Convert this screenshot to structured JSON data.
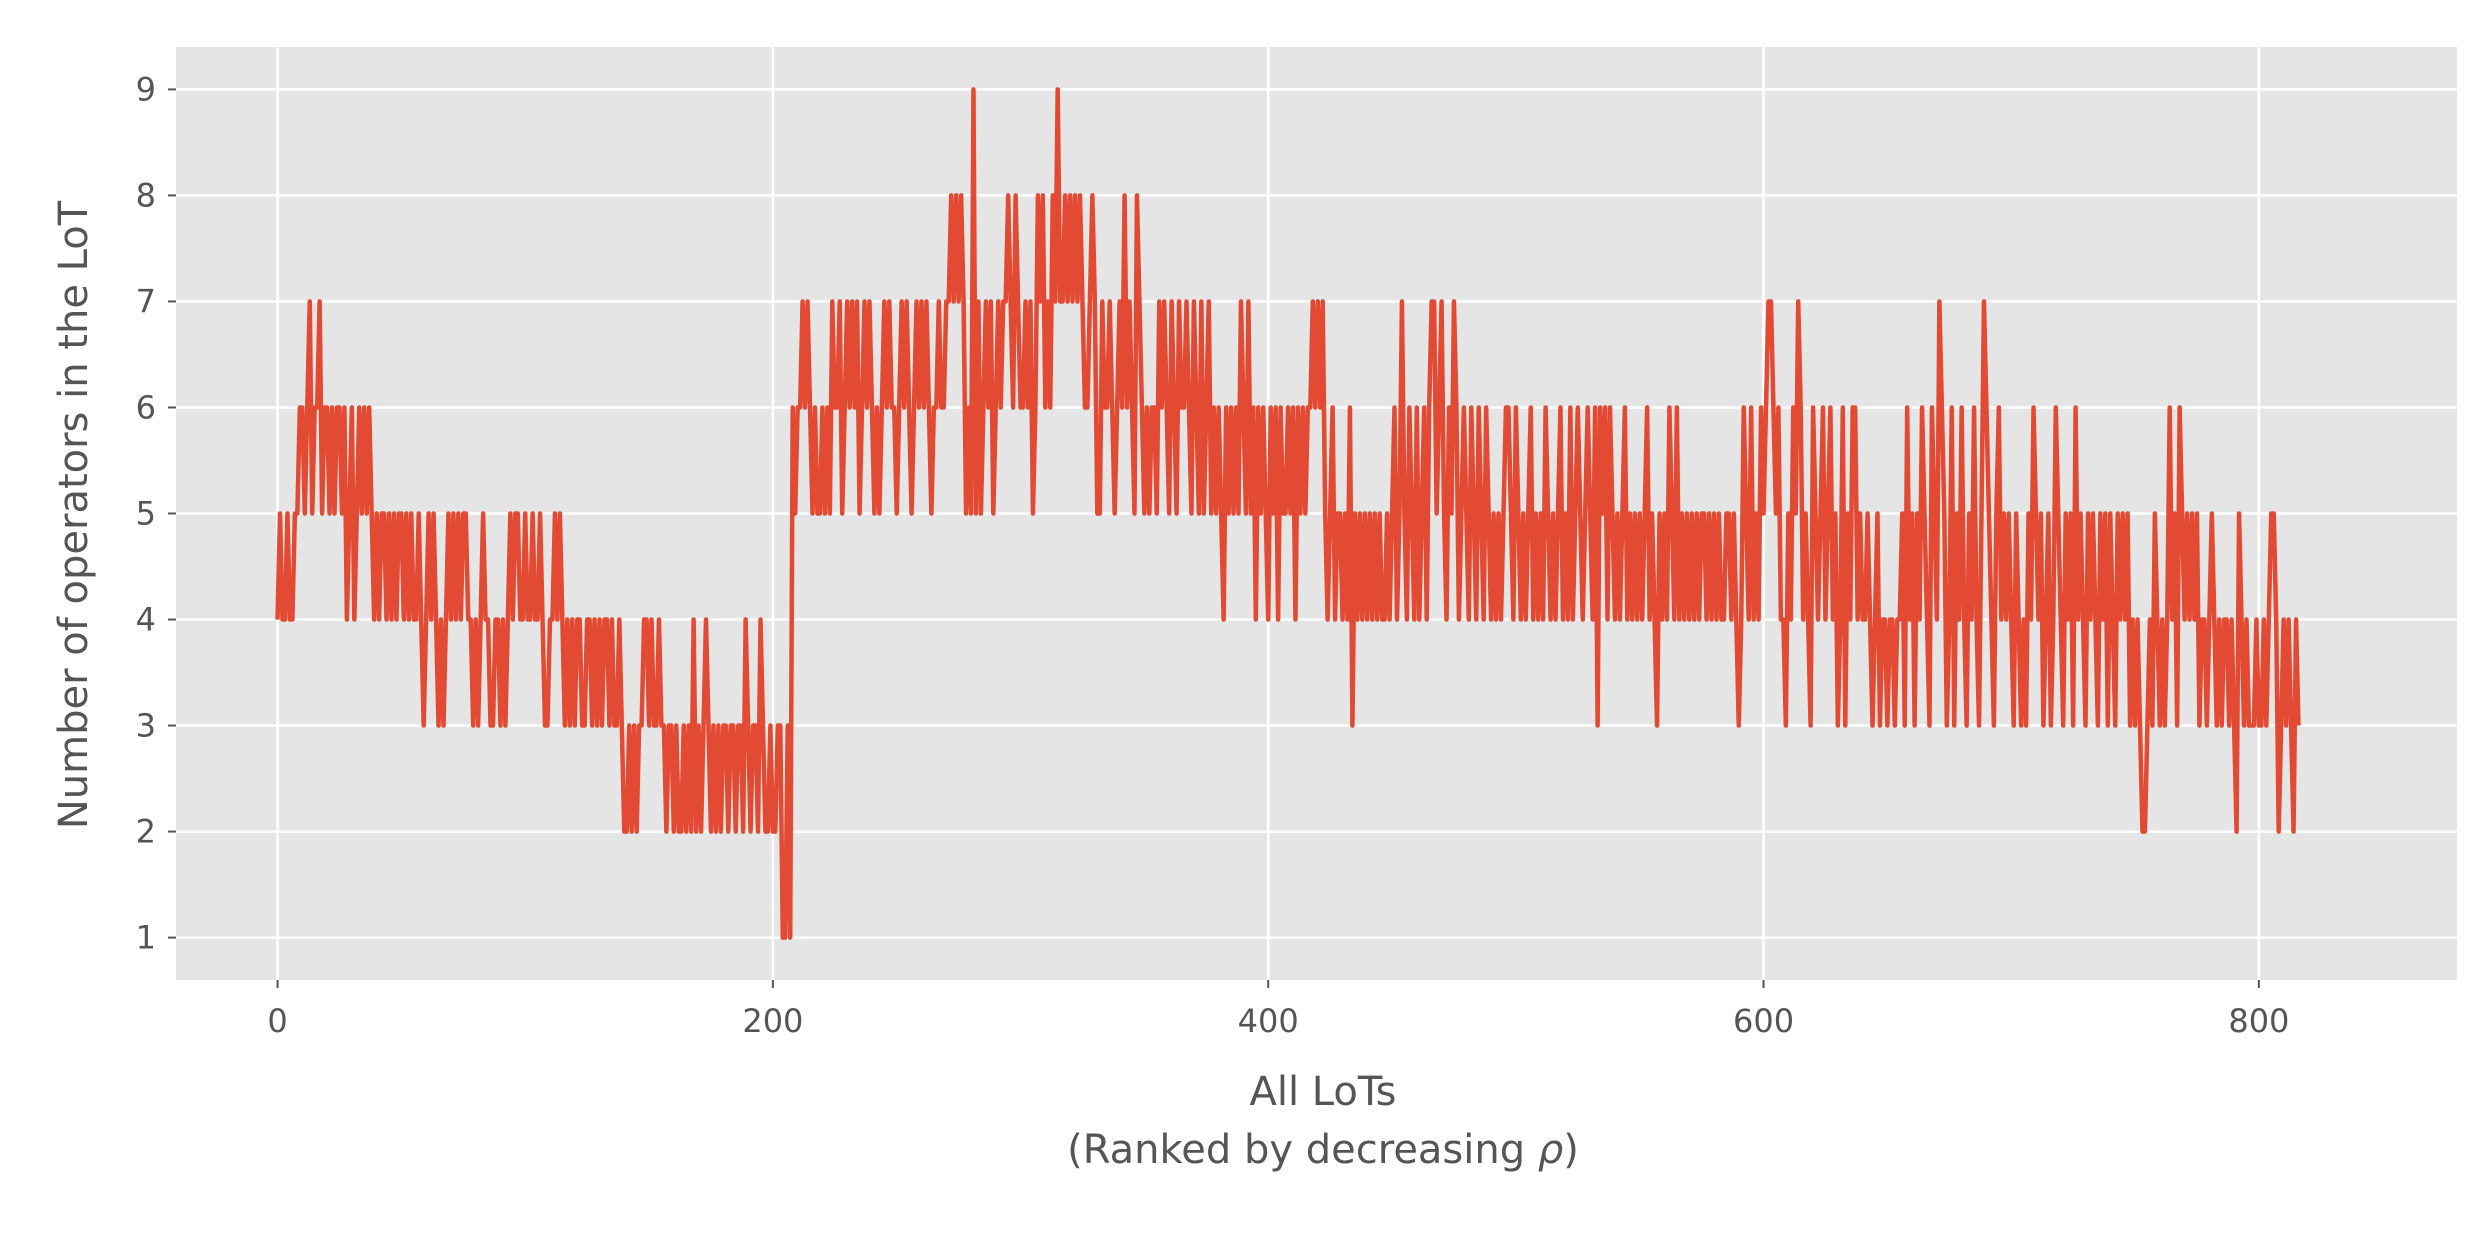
{
  "chart_data": {
    "type": "line",
    "title": "",
    "xlabel": "All LoTs",
    "xlabel_sub": "(Ranked by decreasing ",
    "xlabel_sub_symbol": "ρ",
    "xlabel_sub_end": ")",
    "ylabel": "Number of operators in the LoT",
    "xlim": [
      -41,
      880
    ],
    "ylim": [
      0.6,
      9.4
    ],
    "xticks": [
      0,
      200,
      400,
      600,
      800
    ],
    "yticks": [
      1,
      2,
      3,
      4,
      5,
      6,
      7,
      8,
      9
    ],
    "grid": true,
    "legend": "none",
    "style": {
      "background": "#E5E5E5",
      "grid_color": "#FFFFFF",
      "line_color": "#E24A33"
    },
    "series": [
      {
        "x_start": 0,
        "x_step": 1,
        "values": [
          4,
          5,
          4,
          4,
          5,
          4,
          4,
          5,
          5,
          6,
          6,
          5,
          6,
          7,
          5,
          6,
          6,
          7,
          5,
          6,
          6,
          5,
          6,
          5,
          6,
          6,
          5,
          6,
          4,
          5,
          6,
          4,
          5,
          6,
          5,
          6,
          5,
          6,
          5,
          4,
          5,
          4,
          5,
          5,
          4,
          5,
          4,
          5,
          4,
          5,
          5,
          4,
          5,
          4,
          5,
          4,
          4,
          5,
          4,
          3,
          4,
          5,
          4,
          5,
          4,
          3,
          4,
          3,
          4,
          5,
          4,
          5,
          4,
          5,
          4,
          5,
          5,
          4,
          4,
          3,
          4,
          3,
          4,
          5,
          4,
          4,
          3,
          3,
          4,
          4,
          3,
          4,
          3,
          4,
          5,
          4,
          5,
          5,
          4,
          4,
          5,
          4,
          4,
          5,
          4,
          4,
          5,
          4,
          3,
          3,
          4,
          4,
          5,
          4,
          5,
          4,
          3,
          4,
          3,
          4,
          3,
          4,
          4,
          3,
          3,
          4,
          4,
          3,
          4,
          3,
          4,
          3,
          4,
          4,
          3,
          4,
          3,
          3,
          4,
          3,
          2,
          2,
          3,
          2,
          3,
          2,
          3,
          3,
          4,
          4,
          3,
          4,
          3,
          3,
          4,
          3,
          3,
          2,
          3,
          3,
          2,
          3,
          2,
          2,
          3,
          2,
          3,
          2,
          4,
          2,
          3,
          2,
          3,
          4,
          3,
          2,
          3,
          2,
          3,
          2,
          3,
          3,
          2,
          3,
          3,
          2,
          3,
          3,
          2,
          4,
          3,
          2,
          3,
          3,
          2,
          4,
          3,
          2,
          2,
          3,
          2,
          2,
          3,
          3,
          1,
          1,
          3,
          1,
          6,
          5,
          6,
          6,
          7,
          6,
          7,
          6,
          5,
          6,
          5,
          5,
          6,
          5,
          6,
          5,
          7,
          6,
          6,
          7,
          5,
          6,
          7,
          6,
          7,
          6,
          7,
          5,
          6,
          7,
          6,
          7,
          6,
          5,
          6,
          5,
          6,
          7,
          6,
          7,
          6,
          6,
          5,
          6,
          7,
          6,
          7,
          6,
          5,
          6,
          7,
          6,
          7,
          6,
          7,
          6,
          5,
          6,
          6,
          7,
          6,
          6,
          7,
          7,
          8,
          7,
          8,
          7,
          8,
          7,
          5,
          6,
          5,
          9,
          5,
          7,
          5,
          6,
          7,
          6,
          7,
          5,
          6,
          7,
          6,
          7,
          7,
          8,
          7,
          6,
          8,
          7,
          6,
          6,
          7,
          6,
          7,
          5,
          6,
          8,
          7,
          8,
          6,
          7,
          6,
          8,
          7,
          9,
          7,
          7,
          8,
          7,
          8,
          7,
          8,
          7,
          8,
          7,
          6,
          6,
          7,
          8,
          7,
          5,
          5,
          7,
          6,
          6,
          7,
          6,
          5,
          6,
          7,
          6,
          8,
          6,
          7,
          6,
          5,
          8,
          7,
          6,
          5,
          6,
          5,
          6,
          6,
          5,
          7,
          6,
          7,
          6,
          5,
          7,
          6,
          5,
          7,
          6,
          6,
          7,
          6,
          5,
          7,
          6,
          5,
          7,
          5,
          6,
          7,
          5,
          6,
          5,
          6,
          5,
          4,
          6,
          5,
          6,
          5,
          6,
          5,
          7,
          6,
          5,
          7,
          5,
          6,
          4,
          6,
          5,
          6,
          5,
          4,
          6,
          5,
          6,
          4,
          6,
          5,
          5,
          6,
          5,
          6,
          4,
          6,
          5,
          6,
          5,
          6,
          6,
          7,
          6,
          7,
          6,
          7,
          5,
          4,
          5,
          6,
          4,
          5,
          5,
          4,
          5,
          4,
          6,
          3,
          5,
          4,
          5,
          4,
          5,
          4,
          5,
          4,
          5,
          4,
          5,
          4,
          4,
          5,
          4,
          5,
          6,
          4,
          5,
          7,
          5,
          4,
          6,
          5,
          4,
          6,
          4,
          5,
          6,
          4,
          6,
          7,
          7,
          5,
          6,
          7,
          5,
          4,
          6,
          5,
          7,
          6,
          4,
          5,
          6,
          5,
          4,
          6,
          5,
          4,
          6,
          5,
          4,
          6,
          5,
          4,
          5,
          4,
          5,
          4,
          5,
          6,
          6,
          5,
          4,
          6,
          5,
          4,
          5,
          4,
          5,
          6,
          4,
          5,
          4,
          5,
          4,
          6,
          5,
          4,
          5,
          4,
          5,
          6,
          4,
          5,
          4,
          6,
          4,
          5,
          6,
          5,
          4,
          5,
          6,
          5,
          4,
          6,
          3,
          6,
          5,
          6,
          4,
          6,
          5,
          4,
          5,
          4,
          5,
          6,
          4,
          5,
          4,
          5,
          4,
          5,
          4,
          5,
          6,
          4,
          5,
          4,
          3,
          5,
          4,
          5,
          4,
          6,
          5,
          4,
          6,
          4,
          5,
          4,
          5,
          4,
          5,
          4,
          5,
          4,
          5,
          5,
          4,
          5,
          4,
          5,
          4,
          5,
          4,
          4,
          5,
          5,
          4,
          5,
          4,
          3,
          4,
          6,
          5,
          4,
          6,
          4,
          5,
          4,
          6,
          5,
          6,
          7,
          7,
          6,
          5,
          6,
          4,
          4,
          3,
          5,
          4,
          6,
          5,
          7,
          6,
          4,
          5,
          4,
          3,
          6,
          5,
          4,
          5,
          6,
          4,
          5,
          6,
          4,
          5,
          3,
          4,
          6,
          3,
          5,
          4,
          6,
          6,
          4,
          5,
          4,
          4,
          5,
          4,
          3,
          4,
          5,
          3,
          4,
          4,
          3,
          4,
          4,
          3,
          4,
          4,
          5,
          3,
          6,
          4,
          5,
          3,
          5,
          4,
          6,
          5,
          4,
          3,
          6,
          5,
          4,
          7,
          6,
          5,
          3,
          4,
          6,
          3,
          5,
          4,
          6,
          4,
          3,
          5,
          4,
          6,
          4,
          3,
          5,
          7,
          6,
          5,
          4,
          3,
          5,
          6,
          4,
          5,
          4,
          5,
          4,
          3,
          5,
          4,
          3,
          4,
          3,
          5,
          4,
          6,
          5,
          4,
          5,
          3,
          4,
          5,
          3,
          4,
          6,
          5,
          4,
          3,
          5,
          4,
          5,
          3,
          6,
          4,
          5,
          4,
          3,
          5,
          4,
          5,
          4,
          3,
          5,
          4,
          5,
          3,
          5,
          4,
          3,
          5,
          4,
          5,
          4,
          5,
          3,
          4,
          3,
          4,
          3,
          2,
          2,
          3,
          4,
          3,
          5,
          4,
          3,
          4,
          3,
          4,
          6,
          4,
          5,
          3,
          6,
          5,
          4,
          5,
          4,
          5,
          4,
          5,
          3,
          4,
          4,
          3,
          4,
          5,
          4,
          3,
          4,
          3,
          4,
          4,
          3,
          4,
          3,
          2,
          5,
          4,
          3,
          4,
          3,
          3,
          3,
          4,
          3,
          3,
          4,
          3,
          4,
          5,
          5,
          4,
          2,
          3,
          4,
          3,
          4,
          3,
          2,
          4,
          3
        ]
      }
    ]
  }
}
